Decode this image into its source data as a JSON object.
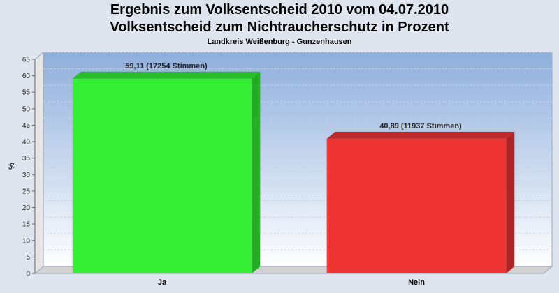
{
  "chart_data": {
    "type": "bar",
    "title": "Ergebnis zum Volksentscheid 2010 vom 04.07.2010",
    "subtitle_main": "Volksentscheid zum Nichtraucherschutz in Prozent",
    "subtitle": "Landkreis Weißenburg - Gunzenhausen",
    "ylabel": "%",
    "xlabel": "",
    "ylim": [
      0,
      65
    ],
    "yticks": [
      0,
      5,
      10,
      15,
      20,
      25,
      30,
      35,
      40,
      45,
      50,
      55,
      60,
      65
    ],
    "categories": [
      "Ja",
      "Nein"
    ],
    "values": [
      59.11,
      40.89
    ],
    "data_labels": [
      "59,11 (17254 Stimmen)",
      "40,89 (11937 Stimmen)"
    ],
    "colors": [
      "#33ee33",
      "#ee3333"
    ],
    "grid": true,
    "style": "3d"
  }
}
